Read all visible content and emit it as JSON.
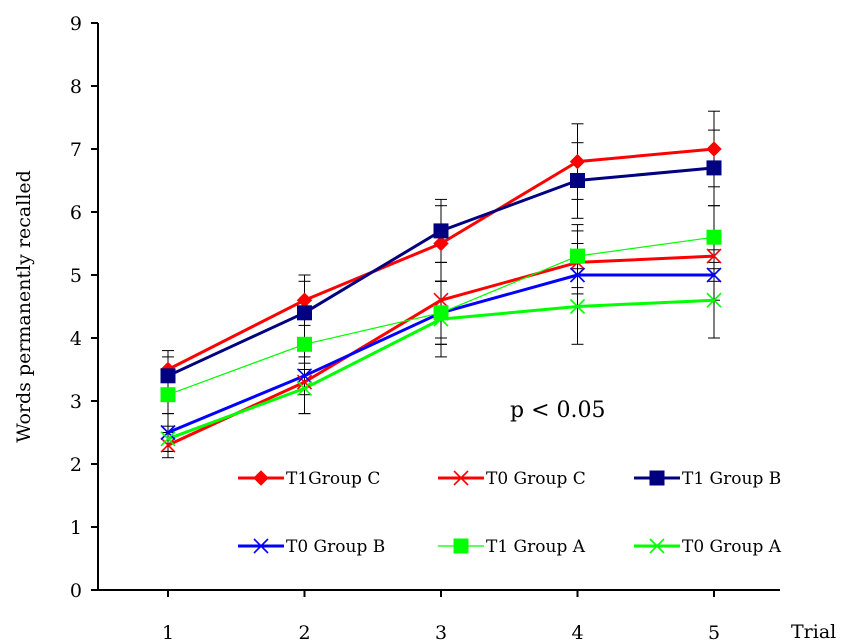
{
  "chart_data": {
    "type": "line",
    "xlabel": "Trial",
    "ylabel": "Words permanently recalled",
    "x": [
      1,
      2,
      3,
      4,
      5
    ],
    "ylim": [
      0,
      9
    ],
    "yticks": [
      0,
      1,
      2,
      3,
      4,
      5,
      6,
      7,
      8,
      9
    ],
    "annotation": "p < 0.05",
    "grid": false,
    "legend": "inside-bottom-right",
    "series": [
      {
        "name": "T1Group C",
        "color": "#ff0000",
        "marker": "diamond",
        "line_width": "thick",
        "values": [
          3.5,
          4.6,
          5.5,
          6.8,
          7.0
        ],
        "errors": [
          0.3,
          0.4,
          0.6,
          0.6,
          0.6
        ]
      },
      {
        "name": "T0 Group C",
        "color": "#ff0000",
        "marker": "x",
        "line_width": "thick",
        "values": [
          2.3,
          3.3,
          4.6,
          5.2,
          5.3
        ],
        "errors": [
          0.2,
          0.5,
          0.6,
          0.5,
          0.4
        ]
      },
      {
        "name": "T1 Group B",
        "color": "#000080",
        "marker": "square",
        "line_width": "thick",
        "values": [
          3.4,
          4.4,
          5.7,
          6.5,
          6.7
        ],
        "errors": [
          0.3,
          0.5,
          0.5,
          0.6,
          0.6
        ]
      },
      {
        "name": "T0 Group B",
        "color": "#0000ff",
        "marker": "x",
        "line_width": "thick",
        "values": [
          2.5,
          3.4,
          4.4,
          5.0,
          5.0
        ],
        "errors": [
          0.3,
          0.3,
          0.5,
          0.5,
          0.4
        ]
      },
      {
        "name": "T1 Group A",
        "color": "#00ff00",
        "marker": "square",
        "line_width": "thin",
        "values": [
          3.1,
          3.9,
          4.4,
          5.3,
          5.6
        ],
        "errors": [
          0.3,
          0.4,
          0.5,
          0.5,
          0.5
        ]
      },
      {
        "name": "T0 Group A",
        "color": "#00ff00",
        "marker": "x",
        "line_width": "thick",
        "values": [
          2.4,
          3.2,
          4.3,
          4.5,
          4.6
        ],
        "errors": [
          0.2,
          0.4,
          0.6,
          0.6,
          0.6
        ]
      }
    ]
  }
}
